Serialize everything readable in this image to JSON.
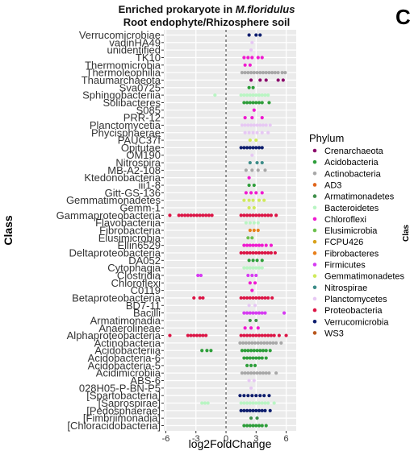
{
  "chart_data": {
    "type": "scatter",
    "title_line1_prefix": "Enriched prokaryote in ",
    "title_line1_species": "M.floridulus",
    "title_line2": "Root endophyte/Rhizosphere soil",
    "xlabel": "log2FoldChange",
    "ylabel": "Class",
    "xlim": [
      -6.2,
      7.0
    ],
    "xticks": [
      -6,
      -3,
      0,
      3,
      6
    ],
    "reference_line_x": 0,
    "grid": true,
    "legend": {
      "title": "Phylum",
      "placement": "right",
      "entries": [
        {
          "name": "Crenarchaeota",
          "color": "#8B0A6B"
        },
        {
          "name": "Acidobacteria",
          "color": "#2E9E3A"
        },
        {
          "name": "Actinobacteria",
          "color": "#A8A8A8"
        },
        {
          "name": "AD3",
          "color": "#E0651B"
        },
        {
          "name": "Armatimonadetes",
          "color": "#3F8F4A"
        },
        {
          "name": "Bacteroidetes",
          "color": "#B9F5C3"
        },
        {
          "name": "Chloroflexi",
          "color": "#F01BD0"
        },
        {
          "name": "Elusimicrobia",
          "color": "#6DC04E"
        },
        {
          "name": "FCPU426",
          "color": "#D9A21C"
        },
        {
          "name": "Fibrobacteres",
          "color": "#E8801C"
        },
        {
          "name": "Firmicutes",
          "color": "#D63BF2"
        },
        {
          "name": "Gemmatimonadetes",
          "color": "#CFEA5C"
        },
        {
          "name": "Nitrospirae",
          "color": "#3C8C88"
        },
        {
          "name": "Planctomycetes",
          "color": "#E7C8F4"
        },
        {
          "name": "Proteobacteria",
          "color": "#DC1445"
        },
        {
          "name": "Verrucomicrobia",
          "color": "#0E1E6E"
        },
        {
          "name": "WS3",
          "color": "#B8561C"
        }
      ]
    },
    "classes": [
      "Verrucomicrobiae",
      "vadinHA49",
      "unidentified",
      "TK10",
      "Thermomicrobia",
      "Thermoleophilia",
      "Thaumarchaeota",
      "Sva0725",
      "Sphingobacteriia",
      "Solibacteres",
      "S085",
      "PRR-12",
      "Planctomycetia",
      "Phycisphaerae",
      "PAUC37f",
      "Opitutae",
      "OM190",
      "Nitrospira",
      "MB-A2-108",
      "Ktedonobacteria",
      "iii1-8",
      "Gitt-GS-136",
      "Gemmatimonadetes",
      "Gemm-1",
      "Gammaproteobacteria",
      "Flavobacteriia",
      "Fibrobacteria",
      "Elusimicrobia",
      "Ellin6529",
      "Deltaproteobacteria",
      "DA052",
      "Cytophagia",
      "Clostridia",
      "Chloroflexi",
      "C0119",
      "Betaproteobacteria",
      "BD7-11",
      "Bacilli",
      "Armatimonadia",
      "Anaerolineae",
      "Alphaproteobacteria",
      "Actinobacteria",
      "Acidobacteriia",
      "Acidobacteria-6",
      "Acidobacteria-5",
      "Acidimicrobiia",
      "ABS-6",
      "028H05-P-BN-P5",
      "[Spartobacteria]",
      "[Saprospirae]",
      "[Pedosphaerae]",
      "[Fimbriimonadia]",
      "[Chloracidobacteria]"
    ],
    "points": [
      {
        "class": "Verrucomicrobiae",
        "phylum": "Verrucomicrobia",
        "x": [
          2.3,
          3.0,
          3.4
        ]
      },
      {
        "class": "vadinHA49",
        "phylum": "Planctomycetes",
        "x": [
          2.6
        ]
      },
      {
        "class": "unidentified",
        "phylum": "Planctomycetes",
        "x": [
          2.5
        ]
      },
      {
        "class": "TK10",
        "phylum": "Chloroflexi",
        "x": [
          1.8,
          2.2,
          2.6,
          3.2,
          3.6
        ]
      },
      {
        "class": "Thermomicrobia",
        "phylum": "Chloroflexi",
        "x": [
          1.9,
          2.4
        ]
      },
      {
        "class": "Thermoleophilia",
        "phylum": "Actinobacteria",
        "x": [
          1.6,
          1.9,
          2.2,
          2.5,
          2.8,
          3.1,
          3.4,
          3.7,
          4.0,
          4.3,
          4.6,
          4.9,
          5.2,
          5.6,
          5.9
        ]
      },
      {
        "class": "Thaumarchaeota",
        "phylum": "Crenarchaeota",
        "x": [
          2.5,
          3.4,
          4.0,
          5.2,
          5.7
        ]
      },
      {
        "class": "Sva0725",
        "phylum": "Acidobacteria",
        "x": [
          2.3,
          2.7
        ]
      },
      {
        "class": "Sphingobacteriia",
        "phylum": "Bacteroidetes",
        "x": [
          -1.1,
          1.5,
          1.8,
          2.1,
          2.4,
          2.7,
          3.0,
          3.3,
          3.6,
          3.9,
          4.2
        ]
      },
      {
        "class": "Solibacteres",
        "phylum": "Acidobacteria",
        "x": [
          1.8,
          2.1,
          2.4,
          2.7,
          3.0,
          3.3,
          3.6,
          4.3
        ]
      },
      {
        "class": "S085",
        "phylum": "Chloroflexi",
        "x": [
          2.8
        ]
      },
      {
        "class": "PRR-12",
        "phylum": "Chloroflexi",
        "x": [
          1.9,
          2.6,
          3.6
        ]
      },
      {
        "class": "Planctomycetia",
        "phylum": "Planctomycetes",
        "x": [
          1.6,
          1.9,
          2.2,
          2.5,
          2.8,
          3.1,
          3.4,
          3.7,
          4.0,
          4.4
        ]
      },
      {
        "class": "Phycisphaerae",
        "phylum": "Planctomycetes",
        "x": [
          1.9,
          2.3,
          2.7,
          3.1,
          3.6,
          4.2
        ]
      },
      {
        "class": "PAUC37f",
        "phylum": "Gemmatimonadetes",
        "x": [
          2.4,
          3.0
        ]
      },
      {
        "class": "Opitutae",
        "phylum": "Verrucomicrobia",
        "x": [
          1.5,
          1.8,
          2.1,
          2.4,
          2.7,
          3.0,
          3.3,
          3.6
        ]
      },
      {
        "class": "OM190",
        "phylum": "Planctomycetes",
        "x": [
          2.6
        ]
      },
      {
        "class": "Nitrospira",
        "phylum": "Nitrospirae",
        "x": [
          2.4,
          3.1,
          3.6
        ]
      },
      {
        "class": "MB-A2-108",
        "phylum": "Actinobacteria",
        "x": [
          2.0,
          2.6,
          3.2,
          3.9
        ]
      },
      {
        "class": "Ktedonobacteria",
        "phylum": "Chloroflexi",
        "x": [
          2.3
        ]
      },
      {
        "class": "iii1-8",
        "phylum": "Acidobacteria",
        "x": [
          2.3,
          2.8
        ]
      },
      {
        "class": "Gitt-GS-136",
        "phylum": "Chloroflexi",
        "x": [
          2.0,
          2.5,
          3.0,
          3.6
        ]
      },
      {
        "class": "Gemmatimonadetes",
        "phylum": "Gemmatimonadetes",
        "x": [
          1.8,
          2.3,
          2.7,
          3.3,
          3.8
        ]
      },
      {
        "class": "Gemm-1",
        "phylum": "Gemmatimonadetes",
        "x": [
          2.3,
          2.8
        ]
      },
      {
        "class": "Gammaproteobacteria",
        "phylum": "Proteobacteria",
        "x": [
          -5.6,
          -4.7,
          -4.4,
          -4.1,
          -3.8,
          -3.5,
          -3.2,
          -2.9,
          -2.6,
          -2.3,
          -2.0,
          -1.7,
          -1.4,
          1.5,
          1.8,
          2.1,
          2.4,
          2.7,
          3.0,
          3.3,
          3.6,
          3.9,
          4.2,
          4.5,
          5.0
        ]
      },
      {
        "class": "Flavobacteriia",
        "phylum": "Bacteroidetes",
        "x": [
          2.0,
          2.4,
          2.8,
          3.2
        ]
      },
      {
        "class": "Fibrobacteria",
        "phylum": "Fibrobacteres",
        "x": [
          2.4,
          2.8,
          3.2
        ]
      },
      {
        "class": "Elusimicrobia",
        "phylum": "Elusimicrobia",
        "x": [
          2.2,
          2.6
        ]
      },
      {
        "class": "Ellin6529",
        "phylum": "Chloroflexi",
        "x": [
          1.8,
          2.1,
          2.4,
          2.7,
          3.0,
          3.3,
          3.6,
          4.0,
          4.5
        ]
      },
      {
        "class": "Deltaproteobacteria",
        "phylum": "Proteobacteria",
        "x": [
          1.5,
          1.8,
          2.1,
          2.4,
          2.7,
          3.0,
          3.3,
          3.6,
          3.9,
          4.2,
          4.5,
          4.9
        ]
      },
      {
        "class": "DA052",
        "phylum": "Acidobacteria",
        "x": [
          2.3,
          2.7,
          3.1,
          3.6
        ]
      },
      {
        "class": "Cytophagia",
        "phylum": "Bacteroidetes",
        "x": [
          1.8,
          2.1,
          2.4,
          2.7,
          3.0,
          3.3,
          3.6
        ]
      },
      {
        "class": "Clostridia",
        "phylum": "Firmicutes",
        "x": [
          -2.8,
          -2.5,
          2.2,
          2.6,
          3.0
        ]
      },
      {
        "class": "Chloroflexi",
        "phylum": "Chloroflexi",
        "x": [
          2.4,
          2.9
        ]
      },
      {
        "class": "C0119",
        "phylum": "Chloroflexi",
        "x": [
          2.6
        ]
      },
      {
        "class": "Betaproteobacteria",
        "phylum": "Proteobacteria",
        "x": [
          -3.2,
          -2.6,
          -2.3,
          1.5,
          1.8,
          2.1,
          2.4,
          2.7,
          3.0,
          3.3,
          3.6,
          3.9,
          4.2,
          4.6
        ]
      },
      {
        "class": "BD7-11",
        "phylum": "Planctomycetes",
        "x": [
          2.3,
          2.9
        ]
      },
      {
        "class": "Bacilli",
        "phylum": "Firmicutes",
        "x": [
          1.8,
          2.1,
          2.4,
          2.7,
          3.0,
          3.3,
          3.6,
          3.9,
          5.8
        ]
      },
      {
        "class": "Armatimonadia",
        "phylum": "Armatimonadetes",
        "x": [
          2.4,
          3.0
        ]
      },
      {
        "class": "Anaerolineae",
        "phylum": "Chloroflexi",
        "x": [
          1.9,
          2.5,
          3.2
        ]
      },
      {
        "class": "Alphaproteobacteria",
        "phylum": "Proteobacteria",
        "x": [
          -5.6,
          -3.8,
          -3.5,
          -3.2,
          -2.9,
          -2.6,
          -2.3,
          -2.0,
          1.5,
          1.8,
          2.1,
          2.4,
          2.7,
          3.0,
          3.3,
          3.6,
          3.9,
          4.2,
          4.5,
          4.8,
          5.3,
          6.0
        ]
      },
      {
        "class": "Actinobacteria",
        "phylum": "Actinobacteria",
        "x": [
          1.4,
          1.7,
          2.0,
          2.3,
          2.6,
          2.9,
          3.2,
          3.5,
          3.8,
          4.1,
          4.4,
          4.7,
          5.0,
          5.5
        ]
      },
      {
        "class": "Acidobacteriia",
        "phylum": "Acidobacteria",
        "x": [
          -2.4,
          -1.9,
          -1.5,
          1.6,
          1.9,
          2.2,
          2.5,
          2.8,
          3.1,
          3.4,
          3.7,
          4.0,
          4.4
        ]
      },
      {
        "class": "Acidobacteria-6",
        "phylum": "Acidobacteria",
        "x": [
          1.8,
          2.1,
          2.4,
          2.7,
          3.0,
          3.3,
          3.6,
          4.0
        ]
      },
      {
        "class": "Acidobacteria-5",
        "phylum": "Acidobacteria",
        "x": [
          2.1,
          2.5,
          2.9
        ]
      },
      {
        "class": "Acidimicrobiia",
        "phylum": "Actinobacteria",
        "x": [
          1.6,
          1.9,
          2.2,
          2.5,
          2.8,
          3.1,
          3.4,
          3.7,
          4.0,
          4.3,
          5.0
        ]
      },
      {
        "class": "ABS-6",
        "phylum": "Planctomycetes",
        "x": [
          2.3,
          2.8
        ]
      },
      {
        "class": "028H05-P-BN-P5",
        "phylum": "Planctomycetes",
        "x": [
          2.5
        ]
      },
      {
        "class": "[Spartobacteria]",
        "phylum": "Verrucomicrobia",
        "x": [
          1.4,
          1.8,
          2.2,
          2.6,
          3.0,
          3.4,
          3.8,
          4.3
        ]
      },
      {
        "class": "[Saprospirae]",
        "phylum": "Bacteroidetes",
        "x": [
          -2.4,
          -2.1,
          -1.8,
          1.5,
          1.8,
          2.1,
          2.4,
          2.7,
          3.0,
          3.3,
          3.6,
          3.9,
          4.2,
          4.8
        ]
      },
      {
        "class": "[Pedosphaerae]",
        "phylum": "Verrucomicrobia",
        "x": [
          1.5,
          1.8,
          2.1,
          2.4,
          2.7,
          3.0,
          3.3,
          3.6,
          3.9,
          4.4
        ]
      },
      {
        "class": "[Fimbriimonadia]",
        "phylum": "Armatimonadetes",
        "x": [
          2.5,
          3.1
        ]
      },
      {
        "class": "[Chloracidobacteria]",
        "phylum": "Acidobacteria",
        "x": [
          1.8,
          2.1,
          2.4,
          2.7,
          3.0,
          3.3,
          3.6,
          4.0
        ]
      }
    ]
  },
  "edge_fragments": {
    "corner_letter": "C",
    "cut_label": "Clas"
  }
}
